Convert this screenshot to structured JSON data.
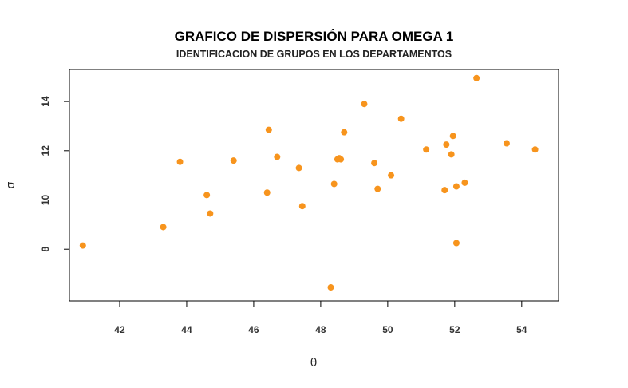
{
  "chart_data": {
    "type": "scatter",
    "title": "GRAFICO DE DISPERSIÓN PARA OMEGA 1",
    "subtitle": "IDENTIFICACION DE GRUPOS EN LOS DEPARTAMENTOS",
    "xlabel": "θ",
    "ylabel": "σ",
    "xlim": [
      40.5,
      55.1
    ],
    "ylim": [
      5.9,
      15.3
    ],
    "xticks": [
      42,
      44,
      46,
      48,
      50,
      52,
      54
    ],
    "yticks": [
      8,
      10,
      12,
      14
    ],
    "grid": false,
    "legend": "none",
    "point_color": "#F7941D",
    "points": [
      {
        "x": 40.9,
        "y": 8.15
      },
      {
        "x": 43.3,
        "y": 8.9
      },
      {
        "x": 43.8,
        "y": 11.55
      },
      {
        "x": 44.6,
        "y": 10.2
      },
      {
        "x": 44.7,
        "y": 9.45
      },
      {
        "x": 45.4,
        "y": 11.6
      },
      {
        "x": 46.4,
        "y": 10.3
      },
      {
        "x": 46.45,
        "y": 12.85
      },
      {
        "x": 46.7,
        "y": 11.75
      },
      {
        "x": 47.35,
        "y": 11.3
      },
      {
        "x": 47.45,
        "y": 9.75
      },
      {
        "x": 48.3,
        "y": 6.45
      },
      {
        "x": 48.4,
        "y": 10.65
      },
      {
        "x": 48.5,
        "y": 11.65
      },
      {
        "x": 48.55,
        "y": 11.7
      },
      {
        "x": 48.6,
        "y": 11.65
      },
      {
        "x": 48.7,
        "y": 12.75
      },
      {
        "x": 49.3,
        "y": 13.9
      },
      {
        "x": 49.6,
        "y": 11.5
      },
      {
        "x": 49.7,
        "y": 10.45
      },
      {
        "x": 50.1,
        "y": 11.0
      },
      {
        "x": 50.4,
        "y": 13.3
      },
      {
        "x": 51.15,
        "y": 12.05
      },
      {
        "x": 51.7,
        "y": 10.4
      },
      {
        "x": 51.75,
        "y": 12.25
      },
      {
        "x": 51.9,
        "y": 11.85
      },
      {
        "x": 51.95,
        "y": 12.6
      },
      {
        "x": 52.05,
        "y": 10.55
      },
      {
        "x": 52.05,
        "y": 8.25
      },
      {
        "x": 52.3,
        "y": 10.7
      },
      {
        "x": 52.65,
        "y": 14.95
      },
      {
        "x": 53.55,
        "y": 12.3
      },
      {
        "x": 54.4,
        "y": 12.05
      }
    ]
  }
}
